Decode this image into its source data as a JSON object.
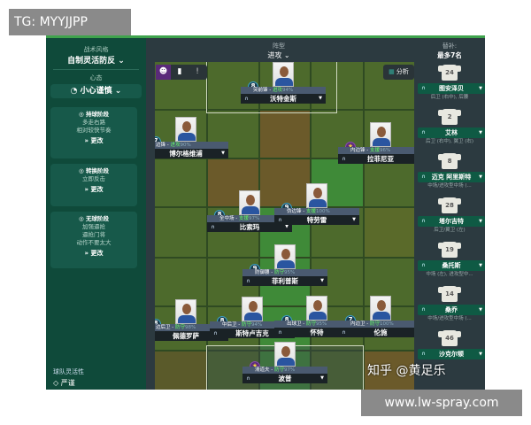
{
  "watermark_tg": "TG: MYYJJPP",
  "watermark_site": "www.lw-spray.com",
  "watermark_zhihu": "知乎 @黄足乐",
  "left_panel": {
    "style_caption": "战术风格",
    "style_value": "自制灵活防反",
    "mentality_caption": "心态",
    "mentality_value": "小心谨慎",
    "phases": [
      {
        "title": "持球阶段",
        "lines": [
          "多走右路",
          "相对较快节奏"
        ],
        "change": "更改"
      },
      {
        "title": "转换阶段",
        "lines": [
          "立即反击"
        ],
        "change": "更改"
      },
      {
        "title": "无球阶段",
        "lines": [
          "加强逼抢",
          "逼抢门将",
          "动作不要太大"
        ],
        "change": "更改"
      }
    ],
    "fluidity_caption": "球队灵活性",
    "fluidity_value": "严谨"
  },
  "header": {
    "formation_caption": "阵型",
    "formation_value": "进攻",
    "analysis_label": "分析"
  },
  "players": [
    {
      "num": "8",
      "role": "突前锋",
      "duty": "进攻",
      "pct": "94%",
      "name": "沃特金斯",
      "star": false
    },
    {
      "num": "7",
      "role": "边锋",
      "duty": "进攻",
      "pct": "90%",
      "name": "博尔格维浦",
      "star": false
    },
    {
      "num": "★",
      "role": "内边锋",
      "duty": "支援",
      "pct": "96%",
      "name": "拉菲尼亚",
      "star": true
    },
    {
      "num": "8",
      "role": "全中场",
      "duty": "支援",
      "pct": "97%",
      "name": "比索玛",
      "star": false
    },
    {
      "num": "9",
      "role": "伪边锋",
      "duty": "支援",
      "pct": "100%",
      "name": "特劳雷",
      "star": false
    },
    {
      "num": "9",
      "role": "防御腰",
      "duty": "防守",
      "pct": "95%",
      "name": "菲利普斯",
      "star": false
    },
    {
      "num": "8",
      "role": "边后卫",
      "duty": "防守",
      "pct": "98%",
      "name": "佩德罗萨",
      "star": false
    },
    {
      "num": "8",
      "role": "中后卫",
      "duty": "防守",
      "pct": "94%",
      "name": "斯特卢吉克",
      "star": false
    },
    {
      "num": "8",
      "role": "出球卫",
      "duty": "防守",
      "pct": "95%",
      "name": "怀特",
      "star": false
    },
    {
      "num": "7",
      "role": "内边卫",
      "duty": "防守",
      "pct": "100%",
      "name": "伦施",
      "star": false
    },
    {
      "num": "★",
      "role": "清道夫",
      "duty": "防守",
      "pct": "97%",
      "name": "波普",
      "star": true
    }
  ],
  "subs": {
    "caption": "替补:",
    "limit": "最多7名",
    "items": [
      {
        "num": "24",
        "name": "图安泽贝",
        "pos": "后卫 (右中), 后腰"
      },
      {
        "num": "2",
        "name": "艾林",
        "pos": "后卫 (右中), 翼卫 (右)"
      },
      {
        "num": "8",
        "name": "迈克 阿里斯特",
        "pos": "中场/进攻型中场 (..."
      },
      {
        "num": "28",
        "name": "塔尔吉特",
        "pos": "后卫/翼卫 (左)"
      },
      {
        "num": "19",
        "name": "桑托斯",
        "pos": "中场 (左), 进攻型中..."
      },
      {
        "num": "14",
        "name": "桑乔",
        "pos": "中场/进攻型中场 (..."
      },
      {
        "num": "46",
        "name": "沙克尔顿",
        "pos": ""
      }
    ]
  },
  "colors": {
    "sidebar": "#0f4a3a",
    "pitch": "#4d6a2c",
    "accent": "#3fa34d"
  }
}
